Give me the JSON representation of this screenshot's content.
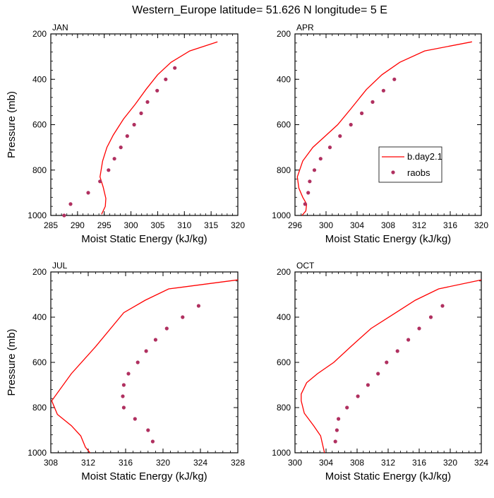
{
  "title": "Western_Europe  latitude= 51.626 N longitude= 5 E",
  "colors": {
    "model": "#ff0000",
    "obs": "#b03060",
    "axis": "#000000"
  },
  "legend": {
    "model_label": "b.day2.1",
    "obs_label": "raobs"
  },
  "chart_data": [
    {
      "type": "line",
      "panel": "JAN",
      "title": "JAN",
      "xlabel": "Moist Static Energy (kJ/kg)",
      "ylabel": "Pressure (mb)",
      "xlim": [
        285,
        320
      ],
      "xticks": [
        285,
        290,
        295,
        300,
        305,
        310,
        315,
        320
      ],
      "ylim": [
        1000,
        200
      ],
      "yticks": [
        200,
        400,
        600,
        800,
        1000
      ],
      "series": [
        {
          "name": "b.day2.1",
          "kind": "line",
          "x": [
            316.2,
            311,
            307.5,
            305,
            302.8,
            300.8,
            298.6,
            296.7,
            295.5,
            294.7,
            294.2,
            294.8,
            295.3,
            295.2,
            294.5
          ],
          "y": [
            235,
            275,
            325,
            380,
            445,
            510,
            575,
            645,
            700,
            760,
            830,
            875,
            925,
            960,
            995
          ]
        },
        {
          "name": "raobs",
          "kind": "scatter",
          "x": [
            308.2,
            306.5,
            304.9,
            303.1,
            301.9,
            300.6,
            299.3,
            298.1,
            296.9,
            295.8,
            294.2,
            292,
            288.7,
            287.5
          ],
          "y": [
            350,
            400,
            450,
            500,
            550,
            600,
            650,
            700,
            750,
            800,
            850,
            900,
            950,
            1000
          ]
        }
      ]
    },
    {
      "type": "line",
      "panel": "APR",
      "title": "APR",
      "xlabel": "Moist Static Energy (kJ/kg)",
      "ylabel": "Pressure (mb)",
      "xlim": [
        296,
        320
      ],
      "xticks": [
        296,
        300,
        304,
        308,
        312,
        316,
        320
      ],
      "ylim": [
        1000,
        200
      ],
      "yticks": [
        200,
        400,
        600,
        800,
        1000
      ],
      "series": [
        {
          "name": "b.day2.1",
          "kind": "line",
          "x": [
            318.8,
            312.7,
            309.5,
            307.2,
            305.2,
            303.2,
            301.5,
            299.9,
            298.3,
            297,
            296.3,
            296.5,
            297,
            297.5,
            297.4,
            296.9
          ],
          "y": [
            235,
            275,
            325,
            380,
            445,
            530,
            600,
            650,
            700,
            760,
            830,
            880,
            920,
            950,
            980,
            1000
          ]
        },
        {
          "name": "raobs",
          "kind": "scatter",
          "x": [
            308.8,
            307.4,
            306,
            304.6,
            303.2,
            301.8,
            300.5,
            299.3,
            298.5,
            297.9,
            297.7,
            297.3
          ],
          "y": [
            400,
            450,
            500,
            550,
            600,
            650,
            700,
            750,
            800,
            850,
            900,
            950
          ]
        }
      ]
    },
    {
      "type": "line",
      "panel": "JUL",
      "title": "JUL",
      "xlabel": "Moist Static Energy (kJ/kg)",
      "ylabel": "Pressure (mb)",
      "xlim": [
        308,
        328
      ],
      "xticks": [
        308,
        312,
        316,
        320,
        324,
        328
      ],
      "ylim": [
        1000,
        200
      ],
      "yticks": [
        200,
        400,
        600,
        800,
        1000
      ],
      "series": [
        {
          "name": "b.day2.1",
          "kind": "line",
          "x": [
            328,
            320.6,
            318.1,
            315.8,
            312.8,
            310.2,
            308.1,
            308.7,
            310.2,
            311.2,
            311.7,
            312.2
          ],
          "y": [
            235,
            275,
            325,
            380,
            530,
            650,
            770,
            830,
            880,
            925,
            975,
            1000
          ]
        },
        {
          "name": "raobs",
          "kind": "scatter",
          "x": [
            323.8,
            322.1,
            320.4,
            319.2,
            318.2,
            317.3,
            316.3,
            315.8,
            315.7,
            315.8,
            317,
            318.4,
            318.9
          ],
          "y": [
            350,
            400,
            450,
            500,
            550,
            600,
            650,
            700,
            750,
            800,
            850,
            900,
            950
          ]
        }
      ]
    },
    {
      "type": "line",
      "panel": "OCT",
      "title": "OCT",
      "xlabel": "Moist Static Energy (kJ/kg)",
      "ylabel": "Pressure (mb)",
      "xlim": [
        300,
        324
      ],
      "xticks": [
        300,
        304,
        308,
        312,
        316,
        320,
        324
      ],
      "ylim": [
        1000,
        200
      ],
      "yticks": [
        200,
        400,
        600,
        800,
        1000
      ],
      "series": [
        {
          "name": "b.day2.1",
          "kind": "line",
          "x": [
            324,
            318.5,
            315.5,
            313,
            309.8,
            307.2,
            305,
            302.9,
            301.5,
            300.8,
            300.8,
            301.2,
            302.4,
            303.3,
            303.8
          ],
          "y": [
            235,
            275,
            325,
            380,
            450,
            530,
            600,
            650,
            690,
            740,
            770,
            825,
            880,
            925,
            1000
          ]
        },
        {
          "name": "raobs",
          "kind": "scatter",
          "x": [
            319,
            317.5,
            316,
            314.6,
            313.2,
            311.8,
            310.7,
            309.4,
            308.1,
            306.7,
            305.6,
            305.4,
            305.2
          ],
          "y": [
            350,
            400,
            450,
            500,
            550,
            600,
            650,
            700,
            750,
            800,
            850,
            900,
            950
          ]
        }
      ]
    }
  ]
}
